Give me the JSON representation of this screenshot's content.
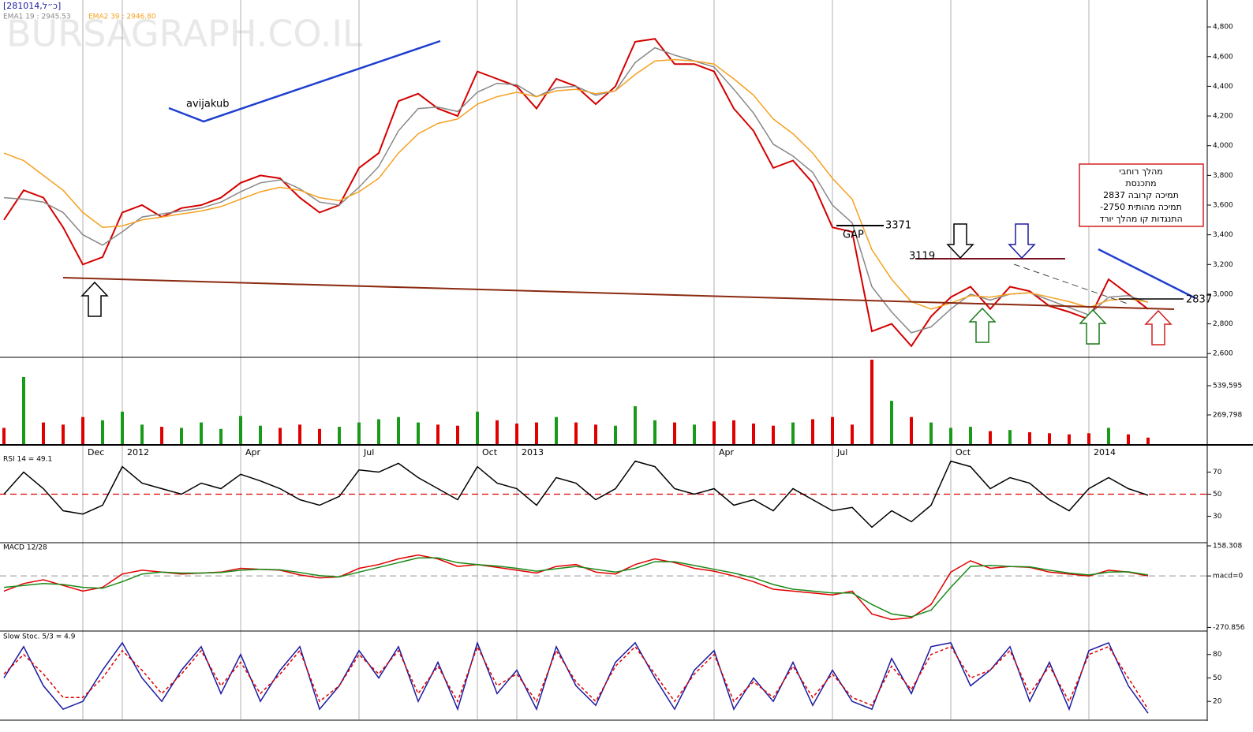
{
  "chart_data": [
    {
      "type": "line",
      "title": "[281014,כ״ל]",
      "watermark": "BURSAGRAPH.CO.IL",
      "categories": [
        null,
        null,
        null,
        null,
        "Dec",
        null,
        "2012",
        null,
        null,
        null,
        null,
        null,
        "Apr",
        null,
        null,
        null,
        null,
        null,
        "Jul",
        null,
        null,
        null,
        null,
        null,
        "Oct",
        null,
        "2013",
        null,
        null,
        null,
        null,
        null,
        null,
        null,
        null,
        null,
        "Apr",
        null,
        null,
        null,
        null,
        null,
        "Jul",
        null,
        null,
        null,
        null,
        null,
        "Oct",
        null,
        null,
        null,
        null,
        null,
        null,
        "2014",
        null,
        null,
        null
      ],
      "ylim": [
        2580,
        4960
      ],
      "yticks": [
        {
          "value": 2600,
          "label": "2,600"
        },
        {
          "value": 2800,
          "label": "2,800"
        },
        {
          "value": 3000,
          "label": "3,000"
        },
        {
          "value": 3200,
          "label": "3,200"
        },
        {
          "value": 3400,
          "label": "3,400"
        },
        {
          "value": 3600,
          "label": "3,600"
        },
        {
          "value": 3800,
          "label": "3,800"
        },
        {
          "value": 4000,
          "label": "4,000"
        },
        {
          "value": 4200,
          "label": "4,200"
        },
        {
          "value": 4400,
          "label": "4,400"
        },
        {
          "value": 4600,
          "label": "4,600"
        },
        {
          "value": 4800,
          "label": "4,800"
        }
      ],
      "series": [
        {
          "color": "#d40000",
          "values": [
            3500,
            3700,
            3650,
            3450,
            3200,
            3250,
            3550,
            3600,
            3520,
            3580,
            3600,
            3650,
            3750,
            3800,
            3780,
            3650,
            3550,
            3600,
            3850,
            3950,
            4300,
            4350,
            4250,
            4200,
            4500,
            4450,
            4400,
            4250,
            4450,
            4400,
            4280,
            4400,
            4700,
            4720,
            4550,
            4550,
            4500,
            4250,
            4100,
            3850,
            3900,
            3750,
            3450,
            3420,
            2750,
            2800,
            2650,
            2850,
            2980,
            3050,
            2900,
            3050,
            3020,
            2920,
            2880,
            2830,
            3100,
            3000,
            2900
          ]
        },
        {
          "name": "EMA1 19 : 2945.53",
          "color": "#888888",
          "values": [
            3650,
            3640,
            3620,
            3550,
            3400,
            3330,
            3420,
            3520,
            3540,
            3560,
            3580,
            3620,
            3690,
            3750,
            3770,
            3710,
            3620,
            3600,
            3720,
            3860,
            4100,
            4250,
            4260,
            4230,
            4360,
            4420,
            4410,
            4330,
            4390,
            4400,
            4340,
            4370,
            4560,
            4660,
            4610,
            4570,
            4530,
            4380,
            4220,
            4010,
            3930,
            3820,
            3600,
            3480,
            3050,
            2880,
            2740,
            2780,
            2900,
            3000,
            2960,
            3000,
            3010,
            2960,
            2910,
            2860,
            2980,
            2990,
            2945
          ]
        },
        {
          "name": "EMA2 39 : 2946.80",
          "color": "#f5a020",
          "values": [
            3950,
            3900,
            3800,
            3700,
            3550,
            3450,
            3460,
            3500,
            3520,
            3540,
            3560,
            3590,
            3640,
            3690,
            3720,
            3700,
            3650,
            3630,
            3690,
            3780,
            3950,
            4080,
            4150,
            4180,
            4280,
            4330,
            4360,
            4330,
            4370,
            4380,
            4350,
            4370,
            4480,
            4570,
            4580,
            4570,
            4550,
            4450,
            4340,
            4180,
            4080,
            3950,
            3780,
            3640,
            3300,
            3100,
            2950,
            2900,
            2940,
            2990,
            2980,
            3000,
            3010,
            2980,
            2950,
            2910,
            2960,
            2970,
            2947
          ]
        }
      ],
      "annotations": [
        "avijakub",
        "GAP",
        "3371",
        "3119",
        "2837"
      ],
      "note_box": [
        "מהלך רוחבי",
        "מתכנסת",
        "תמיכה קרובה 2837",
        "תמיכה מהותית 2750-",
        "התנגדות קו מהלך יורד"
      ]
    },
    {
      "type": "bar",
      "color": "#e00000",
      "up_color": "#1a9a1a",
      "ylim": [
        0,
        787500
      ],
      "yticks": [
        {
          "value": 539595,
          "label": "539,595"
        },
        {
          "value": 269798,
          "label": "269,798"
        }
      ],
      "values": [
        150000,
        620000,
        200000,
        180000,
        250000,
        220000,
        300000,
        180000,
        160000,
        150000,
        200000,
        140000,
        260000,
        170000,
        150000,
        180000,
        140000,
        160000,
        200000,
        230000,
        250000,
        200000,
        180000,
        170000,
        300000,
        220000,
        190000,
        200000,
        250000,
        200000,
        180000,
        170000,
        350000,
        220000,
        200000,
        180000,
        210000,
        220000,
        190000,
        170000,
        200000,
        230000,
        250000,
        180000,
        780000,
        400000,
        250000,
        200000,
        150000,
        160000,
        120000,
        130000,
        110000,
        100000,
        90000,
        100000,
        150000,
        90000,
        60000
      ]
    },
    {
      "type": "line",
      "title": "RSI 14 = 49.1",
      "ylim": [
        6,
        94
      ],
      "yticks": [
        30,
        50,
        70
      ],
      "series": [
        {
          "color": "#000000",
          "values": [
            50,
            70,
            55,
            35,
            32,
            40,
            75,
            60,
            55,
            50,
            60,
            55,
            68,
            62,
            55,
            45,
            40,
            48,
            72,
            70,
            78,
            65,
            55,
            45,
            75,
            60,
            55,
            40,
            65,
            60,
            45,
            55,
            80,
            75,
            55,
            50,
            55,
            40,
            45,
            35,
            55,
            45,
            35,
            38,
            20,
            35,
            25,
            40,
            80,
            75,
            55,
            65,
            60,
            45,
            35,
            55,
            65,
            55,
            49.1
          ]
        }
      ]
    },
    {
      "type": "line",
      "title": "MACD 12/28",
      "ylim": [
        -290,
        175
      ],
      "yticks": [
        -270.856,
        {
          "value": 0,
          "label": "macd=0"
        },
        158.308
      ],
      "series": [
        {
          "color": "#e00000",
          "values": [
            -80,
            -40,
            -20,
            -50,
            -80,
            -60,
            10,
            30,
            20,
            10,
            15,
            20,
            40,
            35,
            30,
            5,
            -10,
            -5,
            40,
            60,
            90,
            110,
            90,
            50,
            60,
            45,
            30,
            15,
            50,
            60,
            20,
            10,
            60,
            90,
            70,
            40,
            25,
            0,
            -30,
            -70,
            -80,
            -90,
            -100,
            -80,
            -200,
            -230,
            -220,
            -150,
            20,
            80,
            40,
            50,
            45,
            20,
            10,
            0,
            30,
            20,
            0
          ]
        },
        {
          "color": "#1a8a1a",
          "values": [
            -60,
            -50,
            -40,
            -45,
            -60,
            -65,
            -30,
            10,
            20,
            15,
            15,
            18,
            30,
            35,
            32,
            18,
            2,
            -5,
            20,
            45,
            70,
            95,
            95,
            70,
            60,
            52,
            40,
            25,
            38,
            50,
            35,
            20,
            40,
            75,
            75,
            55,
            35,
            15,
            -10,
            -45,
            -70,
            -80,
            -90,
            -90,
            -150,
            -200,
            -215,
            -180,
            -60,
            50,
            55,
            50,
            48,
            30,
            15,
            5,
            20,
            22,
            5
          ]
        }
      ]
    },
    {
      "type": "line",
      "title": "Slow Stoc. 5/3 = 4.9",
      "ylim": [
        -3,
        110
      ],
      "yticks": [
        20,
        50,
        80
      ],
      "series": [
        {
          "color": "#1a1aa0",
          "values": [
            50,
            90,
            40,
            10,
            20,
            60,
            95,
            50,
            20,
            60,
            90,
            30,
            80,
            20,
            60,
            90,
            10,
            40,
            85,
            50,
            90,
            20,
            70,
            10,
            95,
            30,
            60,
            10,
            90,
            40,
            15,
            70,
            95,
            50,
            10,
            60,
            85,
            10,
            50,
            20,
            70,
            15,
            60,
            20,
            10,
            75,
            30,
            90,
            95,
            40,
            60,
            90,
            20,
            70,
            10,
            85,
            95,
            40,
            4.9
          ]
        },
        {
          "color": "#e00000",
          "dashed": true,
          "values": [
            55,
            80,
            55,
            25,
            25,
            50,
            85,
            60,
            30,
            55,
            85,
            40,
            70,
            30,
            55,
            85,
            20,
            40,
            80,
            55,
            85,
            30,
            65,
            20,
            90,
            40,
            55,
            20,
            85,
            45,
            20,
            65,
            90,
            55,
            20,
            55,
            80,
            20,
            45,
            25,
            65,
            25,
            55,
            25,
            15,
            65,
            35,
            80,
            90,
            50,
            60,
            85,
            30,
            65,
            20,
            80,
            90,
            50,
            10
          ]
        }
      ]
    }
  ]
}
